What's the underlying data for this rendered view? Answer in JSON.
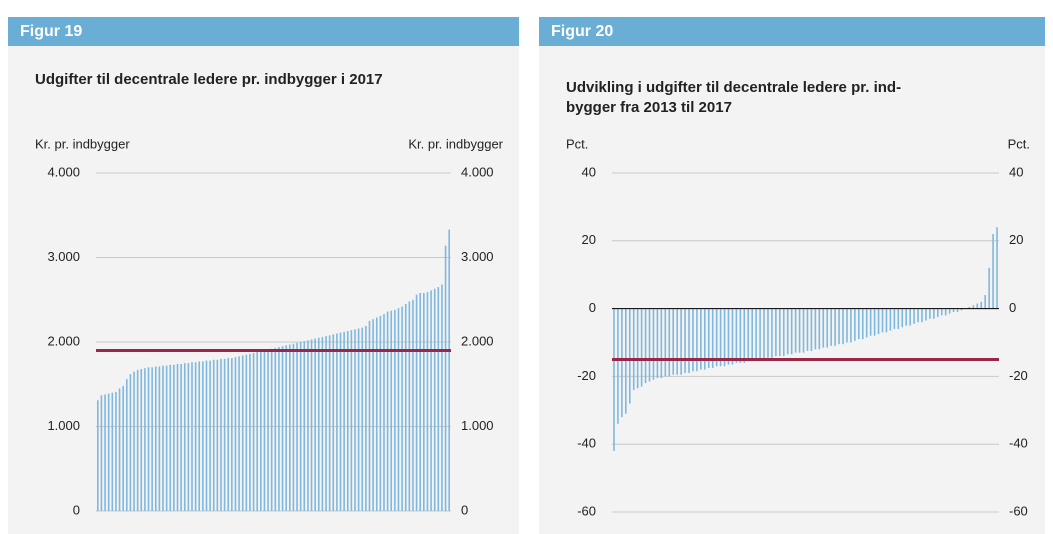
{
  "chart_data": [
    {
      "type": "bar",
      "figure": "Figur 19",
      "title": [
        "Udgifter til decentrale ledere pr. indbygger i 2017"
      ],
      "ylabel": "Kr. pr. indbygger",
      "color": "#7fb8dd",
      "ylim": [
        0,
        4000
      ],
      "yticks": [
        0,
        {
          "value": 1000,
          "label": "1.000"
        },
        {
          "value": 2000,
          "label": "2.000"
        },
        {
          "value": 3000,
          "label": "3.000"
        },
        {
          "value": 4000,
          "label": "4.000"
        }
      ],
      "grid": true,
      "hline": {
        "value": 1900,
        "color": "#9b2748"
      },
      "values": [
        1310,
        1370,
        1380,
        1390,
        1400,
        1410,
        1450,
        1480,
        1560,
        1620,
        1650,
        1670,
        1680,
        1690,
        1700,
        1700,
        1710,
        1710,
        1720,
        1720,
        1730,
        1730,
        1740,
        1740,
        1750,
        1750,
        1760,
        1760,
        1770,
        1770,
        1780,
        1780,
        1790,
        1790,
        1800,
        1800,
        1810,
        1810,
        1820,
        1830,
        1840,
        1850,
        1860,
        1870,
        1880,
        1890,
        1900,
        1910,
        1920,
        1930,
        1940,
        1950,
        1960,
        1970,
        1980,
        1990,
        2000,
        2010,
        2020,
        2030,
        2040,
        2050,
        2060,
        2070,
        2080,
        2090,
        2100,
        2110,
        2120,
        2130,
        2140,
        2150,
        2160,
        2170,
        2190,
        2250,
        2270,
        2290,
        2310,
        2330,
        2360,
        2370,
        2380,
        2400,
        2420,
        2450,
        2480,
        2500,
        2560,
        2580,
        2580,
        2590,
        2610,
        2630,
        2650,
        2680,
        3140,
        3330
      ]
    },
    {
      "type": "bar",
      "figure": "Figur 20",
      "title": [
        "Udvikling i udgifter til decentrale ledere pr. ind-",
        "bygger fra 2013 til 2017"
      ],
      "ylabel": "Pct.",
      "color": "#7fb8dd",
      "ylim": [
        -60,
        40
      ],
      "yticks": [
        -60,
        -40,
        -20,
        0,
        20,
        40
      ],
      "grid": true,
      "hline": {
        "value": -15,
        "color": "#9b2748"
      },
      "values": [
        -42,
        -34,
        -32,
        -31,
        -28,
        -24,
        -23.5,
        -23,
        -22,
        -21.5,
        -21,
        -20.5,
        -20.5,
        -20,
        -20,
        -19.5,
        -19.5,
        -19.5,
        -19,
        -19,
        -18.5,
        -18.5,
        -18,
        -18,
        -17.5,
        -17.5,
        -17,
        -17,
        -17,
        -16.5,
        -16.5,
        -16,
        -16,
        -16,
        -15.5,
        -15.5,
        -15,
        -15,
        -15,
        -14.5,
        -14.5,
        -14,
        -14,
        -14,
        -13.5,
        -13.5,
        -13,
        -13,
        -13,
        -12.5,
        -12.5,
        -12,
        -12,
        -11.5,
        -11.5,
        -11,
        -11,
        -10.5,
        -10.5,
        -10,
        -10,
        -9.5,
        -9,
        -9,
        -8.5,
        -8,
        -8,
        -7.5,
        -7,
        -7,
        -6.5,
        -6,
        -6,
        -5.5,
        -5,
        -5,
        -4.5,
        -4,
        -4,
        -3.5,
        -3,
        -3,
        -2.5,
        -2,
        -2,
        -1.5,
        -1,
        -1,
        -0.5,
        0,
        0.5,
        1,
        1.5,
        2,
        4,
        12,
        22,
        24
      ]
    }
  ]
}
